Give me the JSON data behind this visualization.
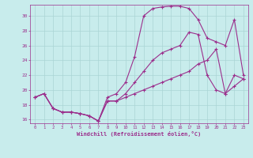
{
  "xlabel": "Windchill (Refroidissement éolien,°C)",
  "ylabel": "",
  "bg_color": "#c8ecec",
  "line_color": "#9b2e8c",
  "grid_color": "#aad4d4",
  "xlim": [
    -0.5,
    23.5
  ],
  "ylim": [
    15.5,
    31.5
  ],
  "yticks": [
    16,
    18,
    20,
    22,
    24,
    26,
    28,
    30
  ],
  "xticks": [
    0,
    1,
    2,
    3,
    4,
    5,
    6,
    7,
    8,
    9,
    10,
    11,
    12,
    13,
    14,
    15,
    16,
    17,
    18,
    19,
    20,
    21,
    22,
    23
  ],
  "series1_x": [
    0,
    1,
    2,
    3,
    4,
    5,
    6,
    7,
    8,
    9,
    10,
    11,
    12,
    13,
    14,
    15,
    16,
    17,
    18,
    19,
    20,
    21,
    22,
    23
  ],
  "series1_y": [
    19.0,
    19.5,
    17.5,
    17.0,
    17.0,
    16.8,
    16.5,
    15.8,
    19.0,
    19.5,
    21.0,
    24.5,
    30.0,
    31.0,
    31.2,
    31.3,
    31.3,
    31.0,
    29.5,
    27.0,
    26.5,
    26.0,
    29.5,
    22.0
  ],
  "series2_x": [
    0,
    1,
    2,
    3,
    4,
    5,
    6,
    7,
    8,
    9,
    10,
    11,
    12,
    13,
    14,
    15,
    16,
    17,
    18,
    19,
    20,
    21,
    22,
    23
  ],
  "series2_y": [
    19.0,
    19.5,
    17.5,
    17.0,
    17.0,
    16.8,
    16.5,
    15.8,
    18.5,
    18.5,
    19.5,
    21.0,
    22.5,
    24.0,
    25.0,
    25.5,
    26.0,
    27.8,
    27.5,
    22.0,
    20.0,
    19.5,
    22.0,
    21.5
  ],
  "series3_x": [
    0,
    1,
    2,
    3,
    4,
    5,
    6,
    7,
    8,
    9,
    10,
    11,
    12,
    13,
    14,
    15,
    16,
    17,
    18,
    19,
    20,
    21,
    22,
    23
  ],
  "series3_y": [
    19.0,
    19.5,
    17.5,
    17.0,
    17.0,
    16.8,
    16.5,
    15.8,
    18.5,
    18.5,
    19.0,
    19.5,
    20.0,
    20.5,
    21.0,
    21.5,
    22.0,
    22.5,
    23.5,
    24.0,
    25.5,
    19.5,
    20.5,
    21.5
  ]
}
